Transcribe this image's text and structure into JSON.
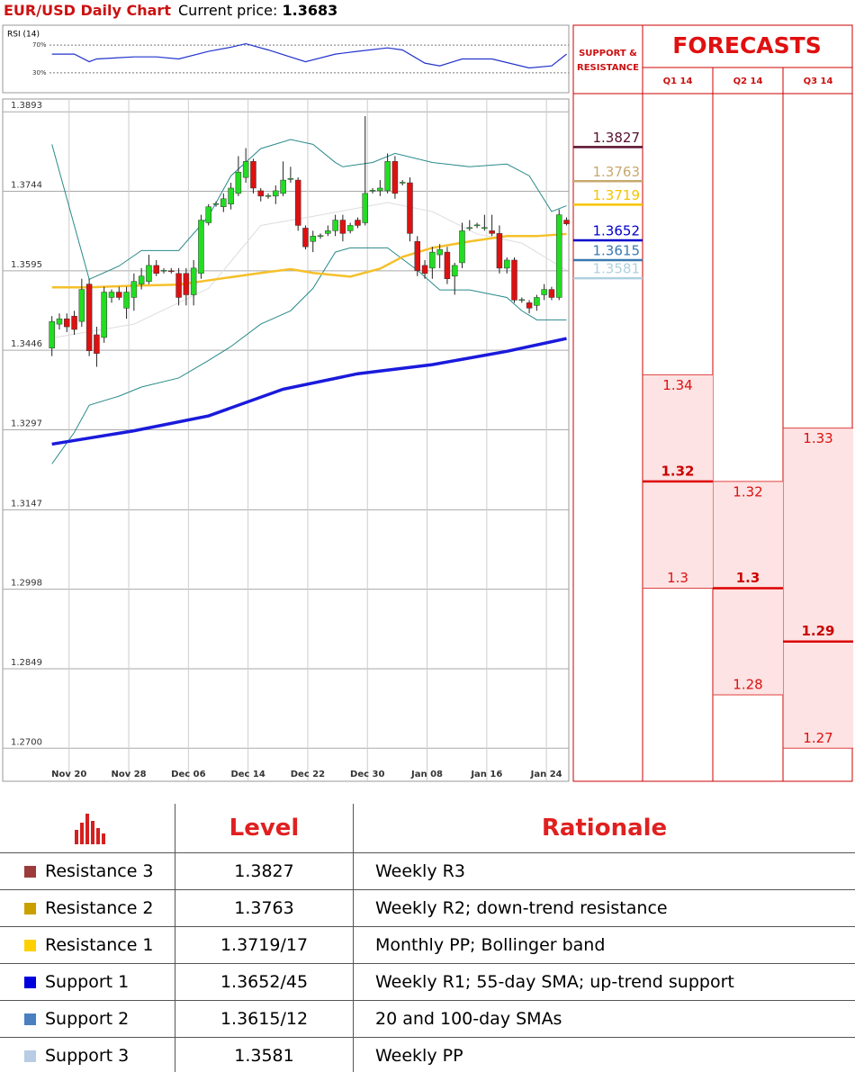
{
  "header": {
    "title": "EUR/USD Daily Chart",
    "price_label": "Current price:",
    "price": 1.3683
  },
  "chart_data": [
    {
      "type": "line",
      "title": "RSI (14)",
      "xlim": [
        -6.6,
        69.3
      ],
      "ylim": [
        0,
        100
      ],
      "yticks": [
        {
          "value": 70,
          "label": "70%"
        },
        {
          "value": 30,
          "label": "30%"
        }
      ],
      "series": [
        {
          "color": "#2233cc",
          "x": [
            0,
            3,
            5,
            6,
            11,
            14,
            17,
            21,
            24,
            26,
            29,
            34,
            38,
            41,
            45,
            47,
            50,
            52,
            55,
            59,
            64,
            67,
            69
          ],
          "values": [
            57,
            57,
            46,
            50,
            53,
            53,
            50,
            61,
            67,
            72,
            63,
            46,
            57,
            61,
            66,
            63,
            44,
            40,
            50,
            50,
            37,
            40,
            57
          ]
        }
      ]
    },
    {
      "type": "candlestick",
      "xlim": [
        -6.6,
        69.3
      ],
      "ylim": [
        1.2638,
        1.3917
      ],
      "grid": true,
      "up_color": "#22dd22",
      "down_color": "#dd1111",
      "yticks": [
        1.3893,
        1.3744,
        1.3595,
        1.3446,
        1.3297,
        1.3147,
        1.2998,
        1.2849,
        {
          "value": 1.27,
          "label": "1.2700"
        }
      ],
      "xticks": [
        {
          "value": 2.3,
          "label": "Nov 20"
        },
        {
          "value": 10.3,
          "label": "Nov 28"
        },
        {
          "value": 18.3,
          "label": "Dec 06"
        },
        {
          "value": 26.3,
          "label": "Dec 14"
        },
        {
          "value": 34.3,
          "label": "Dec 22"
        },
        {
          "value": 42.3,
          "label": "Dec 30"
        },
        {
          "value": 50.3,
          "label": "Jan 08"
        },
        {
          "value": 58.3,
          "label": "Jan 16"
        },
        {
          "value": 66.3,
          "label": "Jan 24"
        }
      ],
      "open": [
        1.345,
        1.3495,
        1.3505,
        1.351,
        1.35,
        1.357,
        1.3475,
        1.347,
        1.3545,
        1.3555,
        1.3525,
        1.3545,
        1.357,
        1.3575,
        1.3605,
        1.3595,
        1.3595,
        1.359,
        1.359,
        1.355,
        1.359,
        1.3685,
        1.372,
        1.3715,
        1.372,
        1.374,
        1.377,
        1.38,
        1.3745,
        1.3735,
        1.3735,
        1.374,
        1.3767,
        1.3765,
        1.3675,
        1.365,
        1.366,
        1.3665,
        1.367,
        1.369,
        1.367,
        1.369,
        1.3685,
        1.3745,
        1.3745,
        1.3745,
        1.38,
        1.376,
        1.376,
        1.365,
        1.3605,
        1.36,
        1.3625,
        1.363,
        1.3585,
        1.361,
        1.3675,
        1.368,
        1.3675,
        1.367,
        1.3665,
        1.36,
        1.3615,
        1.354,
        1.3535,
        1.353,
        1.355,
        1.356,
        1.3545,
        1.369
      ],
      "close": [
        1.35,
        1.3505,
        1.349,
        1.3485,
        1.356,
        1.3445,
        1.344,
        1.3555,
        1.3555,
        1.3545,
        1.3555,
        1.3575,
        1.3585,
        1.3605,
        1.359,
        1.3596,
        1.3594,
        1.3545,
        1.355,
        1.36,
        1.369,
        1.3715,
        1.3721,
        1.373,
        1.375,
        1.378,
        1.38,
        1.375,
        1.3735,
        1.3736,
        1.3745,
        1.3765,
        1.3768,
        1.368,
        1.364,
        1.366,
        1.3661,
        1.367,
        1.369,
        1.3665,
        1.368,
        1.368,
        1.374,
        1.3746,
        1.375,
        1.38,
        1.374,
        1.3761,
        1.3665,
        1.3595,
        1.359,
        1.363,
        1.3635,
        1.358,
        1.3605,
        1.367,
        1.3676,
        1.3681,
        1.3676,
        1.3665,
        1.36,
        1.3615,
        1.354,
        1.3541,
        1.3525,
        1.3545,
        1.356,
        1.3545,
        1.37,
        1.3683
      ],
      "high": [
        1.351,
        1.3515,
        1.3515,
        1.352,
        1.358,
        1.358,
        1.349,
        1.3565,
        1.356,
        1.3565,
        1.3565,
        1.359,
        1.36,
        1.3625,
        1.3615,
        1.36,
        1.36,
        1.36,
        1.36,
        1.3615,
        1.37,
        1.372,
        1.3725,
        1.374,
        1.376,
        1.381,
        1.3825,
        1.3805,
        1.375,
        1.374,
        1.3755,
        1.38,
        1.379,
        1.377,
        1.368,
        1.367,
        1.3665,
        1.368,
        1.37,
        1.37,
        1.3685,
        1.3695,
        1.3885,
        1.375,
        1.3765,
        1.3815,
        1.381,
        1.3765,
        1.377,
        1.366,
        1.3615,
        1.364,
        1.3645,
        1.364,
        1.361,
        1.3685,
        1.369,
        1.3685,
        1.37,
        1.37,
        1.368,
        1.362,
        1.362,
        1.3545,
        1.354,
        1.355,
        1.357,
        1.3565,
        1.371,
        1.3695
      ],
      "low": [
        1.3435,
        1.3485,
        1.348,
        1.3475,
        1.349,
        1.3435,
        1.3415,
        1.346,
        1.3535,
        1.354,
        1.3505,
        1.352,
        1.356,
        1.357,
        1.3585,
        1.359,
        1.359,
        1.353,
        1.353,
        1.353,
        1.358,
        1.368,
        1.3715,
        1.3705,
        1.371,
        1.3735,
        1.376,
        1.374,
        1.3725,
        1.373,
        1.372,
        1.3735,
        1.376,
        1.367,
        1.3635,
        1.363,
        1.3655,
        1.366,
        1.366,
        1.365,
        1.3665,
        1.3675,
        1.368,
        1.374,
        1.3735,
        1.374,
        1.373,
        1.3755,
        1.365,
        1.3585,
        1.358,
        1.358,
        1.36,
        1.357,
        1.355,
        1.36,
        1.367,
        1.3675,
        1.367,
        1.366,
        1.359,
        1.359,
        1.3535,
        1.3535,
        1.3515,
        1.352,
        1.354,
        1.354,
        1.354,
        1.368
      ],
      "series": [
        {
          "color": "#dddddd",
          "x": [
            0,
            11,
            21,
            28,
            35,
            45,
            51,
            57,
            63,
            69
          ],
          "values": [
            1.3469,
            1.3495,
            1.3562,
            1.368,
            1.3697,
            1.3723,
            1.3706,
            1.3664,
            1.3647,
            1.3596
          ]
        },
        {
          "color": "#2a8a8a",
          "x": [
            0,
            3,
            5,
            9,
            12,
            17,
            21,
            24,
            28,
            32,
            35,
            38,
            39,
            43,
            46,
            51,
            56,
            61,
            64,
            67,
            69
          ],
          "values": [
            1.3832,
            1.368,
            1.3579,
            1.3604,
            1.3633,
            1.3633,
            1.3697,
            1.3773,
            1.3824,
            1.3841,
            1.3832,
            1.3798,
            1.379,
            1.3798,
            1.3815,
            1.3798,
            1.379,
            1.3795,
            1.3773,
            1.3706,
            1.3717
          ]
        },
        {
          "color": "#2a8a8a",
          "x": [
            0,
            3,
            5,
            9,
            12,
            17,
            21,
            24,
            28,
            32,
            35,
            38,
            40,
            45,
            49,
            52,
            56,
            61,
            63,
            65,
            69
          ],
          "values": [
            1.3233,
            1.3292,
            1.3343,
            1.336,
            1.3377,
            1.3394,
            1.3427,
            1.3453,
            1.3495,
            1.352,
            1.3562,
            1.363,
            1.3638,
            1.3638,
            1.3596,
            1.3559,
            1.3559,
            1.3545,
            1.352,
            1.3503,
            1.3503
          ]
        },
        {
          "color": "#f5c02a",
          "x": [
            0,
            5,
            11,
            17,
            22,
            28,
            32,
            35,
            40,
            44,
            47,
            51,
            56,
            61,
            65,
            69
          ],
          "values": [
            1.3564,
            1.3564,
            1.3567,
            1.3569,
            1.3579,
            1.3591,
            1.3598,
            1.3591,
            1.3584,
            1.3599,
            1.3621,
            1.3638,
            1.365,
            1.366,
            1.366,
            1.3664
          ]
        },
        {
          "color": "#1a1adc",
          "x": [
            0,
            11,
            21,
            31,
            41,
            51,
            61,
            69
          ],
          "values": [
            1.327,
            1.3295,
            1.3323,
            1.3373,
            1.3402,
            1.3419,
            1.3444,
            1.3468
          ]
        }
      ]
    }
  ],
  "levels": {
    "title": "SUPPORT & RESISTANCE",
    "items": [
      {
        "value": 1.3827,
        "color": "#5a0f2e"
      },
      {
        "value": 1.3763,
        "color": "#c8a870"
      },
      {
        "value": 1.3719,
        "color": "#f5c400"
      },
      {
        "value": 1.3652,
        "color": "#0000cc"
      },
      {
        "value": 1.3615,
        "color": "#3a78b0"
      },
      {
        "value": 1.3581,
        "color": "#b0d0e0"
      }
    ]
  },
  "forecasts": {
    "title": "FORECASTS",
    "periods": [
      {
        "label": "Q1 14",
        "high": 1.34,
        "mid": 1.32,
        "low": 1.3
      },
      {
        "label": "Q2 14",
        "high": 1.32,
        "mid": 1.3,
        "low": 1.28
      },
      {
        "label": "Q3 14",
        "high": 1.33,
        "mid": 1.29,
        "low": 1.27
      }
    ]
  },
  "table": {
    "header": [
      "Level",
      "Rationale"
    ],
    "rows": [
      {
        "color": "#9b3b3b",
        "name": "Resistance 3",
        "level": "1.3827",
        "rationale": "Weekly R3"
      },
      {
        "color": "#c9a000",
        "name": "Resistance 2",
        "level": "1.3763",
        "rationale": "Weekly R2; down-trend resistance"
      },
      {
        "color": "#ffd000",
        "name": "Resistance 1",
        "level": "1.3719/17",
        "rationale": "Monthly PP; Bollinger band"
      },
      {
        "color": "#0000dd",
        "name": "Support 1",
        "level": "1.3652/45",
        "rationale": "Weekly R1; 55-day SMA; up-trend support"
      },
      {
        "color": "#4a80c0",
        "name": "Support 2",
        "level": "1.3615/12",
        "rationale": "20 and 100-day SMAs"
      },
      {
        "color": "#b8cce4",
        "name": "Support 3",
        "level": "1.3581",
        "rationale": "Weekly PP"
      }
    ]
  }
}
